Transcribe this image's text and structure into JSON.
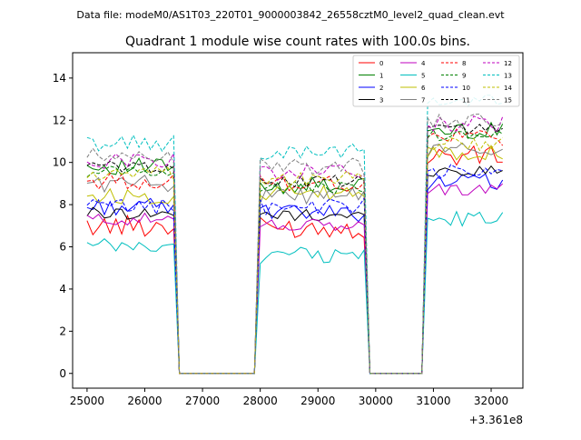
{
  "chart_data": {
    "type": "line",
    "suptitle": "Data file: modeM0/AS1T03_220T01_9000003842_26558cztM0_level2_quad_clean.evt",
    "title": "Quadrant 1 module wise count rates with 100.0s bins.",
    "xlabel": "",
    "ylabel": "",
    "x_offset_label": "+3.361e8",
    "xlim": [
      24750,
      32550
    ],
    "ylim": [
      -0.7,
      15.2
    ],
    "xticks": [
      25000,
      26000,
      27000,
      28000,
      29000,
      30000,
      31000,
      32000
    ],
    "xtick_labels": [
      "25000",
      "26000",
      "27000",
      "28000",
      "29000",
      "30000",
      "31000",
      "32000"
    ],
    "yticks": [
      0,
      2,
      4,
      6,
      8,
      10,
      12,
      14
    ],
    "ytick_labels": [
      "0",
      "2",
      "4",
      "6",
      "8",
      "10",
      "12",
      "14"
    ],
    "legend_position": "top-right",
    "legend_columns": 4,
    "segments": [
      {
        "start": 25000,
        "end": 26500
      },
      {
        "start": 26600,
        "end": 27900
      },
      {
        "start": 28000,
        "end": 29800
      },
      {
        "start": 29900,
        "end": 30800
      },
      {
        "start": 30900,
        "end": 32200
      }
    ],
    "series": [
      {
        "name": "0",
        "color": "#ff0000",
        "dash": "solid",
        "levels": [
          7.0,
          0.0,
          6.9,
          0.0,
          10.3
        ],
        "noise": 0.5
      },
      {
        "name": "1",
        "color": "#008000",
        "dash": "solid",
        "levels": [
          9.8,
          0.0,
          8.9,
          0.0,
          11.5
        ],
        "noise": 0.4
      },
      {
        "name": "2",
        "color": "#0000ff",
        "dash": "solid",
        "levels": [
          7.9,
          0.0,
          7.6,
          0.0,
          9.1
        ],
        "noise": 0.4
      },
      {
        "name": "3",
        "color": "#000000",
        "dash": "solid",
        "levels": [
          7.6,
          0.0,
          7.5,
          0.0,
          9.6
        ],
        "noise": 0.3
      },
      {
        "name": "4",
        "color": "#bf00bf",
        "dash": "solid",
        "levels": [
          7.3,
          0.0,
          7.0,
          0.0,
          8.7
        ],
        "noise": 0.3
      },
      {
        "name": "5",
        "color": "#00bfbf",
        "dash": "solid",
        "levels": [
          6.0,
          0.0,
          5.6,
          0.0,
          7.3
        ],
        "noise": 0.4
      },
      {
        "name": "6",
        "color": "#bfbf00",
        "dash": "solid",
        "levels": [
          8.4,
          0.0,
          8.5,
          0.0,
          10.5
        ],
        "noise": 0.4
      },
      {
        "name": "7",
        "color": "#808080",
        "dash": "solid",
        "levels": [
          9.0,
          0.0,
          8.4,
          0.0,
          10.6
        ],
        "noise": 0.4
      },
      {
        "name": "8",
        "color": "#ff0000",
        "dash": "dashed",
        "levels": [
          9.1,
          0.0,
          9.0,
          0.0,
          11.2
        ],
        "noise": 0.4
      },
      {
        "name": "9",
        "color": "#008000",
        "dash": "dashed",
        "levels": [
          9.6,
          0.0,
          8.8,
          0.0,
          11.3
        ],
        "noise": 0.3
      },
      {
        "name": "10",
        "color": "#0000ff",
        "dash": "dashed",
        "levels": [
          7.9,
          0.0,
          7.9,
          0.0,
          9.5
        ],
        "noise": 0.4
      },
      {
        "name": "11",
        "color": "#000000",
        "dash": "dashed",
        "levels": [
          9.8,
          0.0,
          9.1,
          0.0,
          11.6
        ],
        "noise": 0.3
      },
      {
        "name": "12",
        "color": "#bf00bf",
        "dash": "dashed",
        "levels": [
          10.1,
          0.0,
          9.5,
          0.0,
          11.8
        ],
        "noise": 0.4
      },
      {
        "name": "13",
        "color": "#00bfbf",
        "dash": "dashed",
        "levels": [
          10.9,
          0.0,
          10.5,
          0.0,
          12.8
        ],
        "noise": 0.4
      },
      {
        "name": "14",
        "color": "#bfbf00",
        "dash": "dashed",
        "levels": [
          9.4,
          0.0,
          9.2,
          0.0,
          10.9
        ],
        "noise": 0.4
      },
      {
        "name": "15",
        "color": "#808080",
        "dash": "dashed",
        "levels": [
          10.3,
          0.0,
          9.8,
          0.0,
          11.9
        ],
        "noise": 0.4
      }
    ]
  }
}
